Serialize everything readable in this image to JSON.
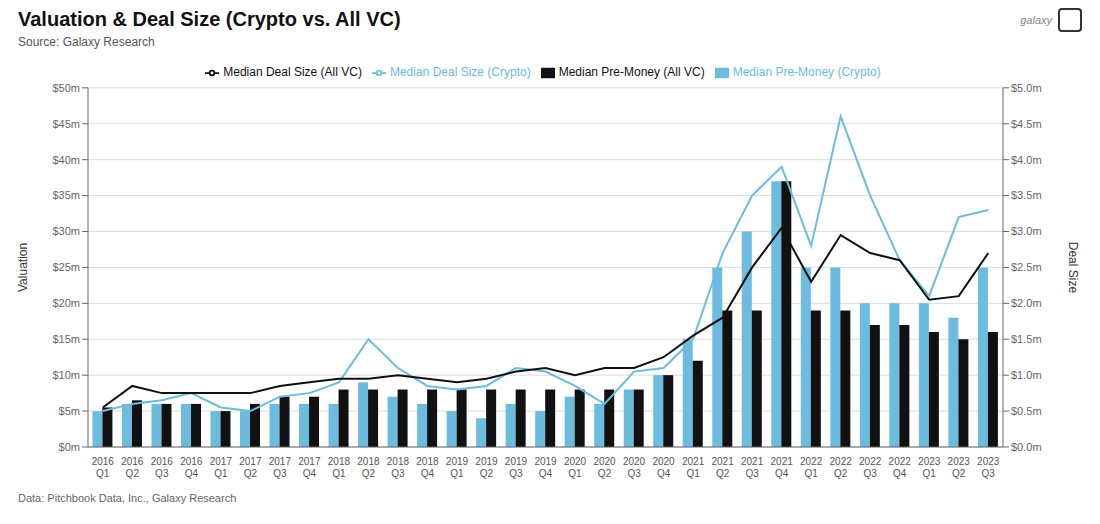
{
  "chart_data": {
    "type": "bar",
    "title": "Valuation & Deal Size (Crypto vs. All VC)",
    "subtitle": "Source: Galaxy Research",
    "footnote": "Data: Pitchbook Data, Inc., Galaxy Research",
    "annotations": [
      "galaxy"
    ],
    "ylabel": "Valuation",
    "y2label": "Deal Size",
    "categories": [
      "2016\nQ1",
      "2016\nQ2",
      "2016\nQ3",
      "2016\nQ4",
      "2017\nQ1",
      "2017\nQ2",
      "2017\nQ3",
      "2017\nQ4",
      "2018\nQ1",
      "2018\nQ2",
      "2018\nQ3",
      "2018\nQ4",
      "2019\nQ1",
      "2019\nQ2",
      "2019\nQ3",
      "2019\nQ4",
      "2020\nQ1",
      "2020\nQ2",
      "2020\nQ3",
      "2020\nQ4",
      "2021\nQ1",
      "2021\nQ2",
      "2021\nQ3",
      "2021\nQ4",
      "2022\nQ1",
      "2022\nQ2",
      "2022\nQ3",
      "2022\nQ4",
      "2023\nQ1",
      "2023\nQ2",
      "2023\nQ3"
    ],
    "series": [
      {
        "name": "Median Pre-Money (Crypto)",
        "type": "bar",
        "color": "#6bbcde",
        "values": [
          5,
          6,
          6,
          6,
          5,
          5,
          6,
          6,
          6,
          9,
          7,
          6,
          5,
          4,
          6,
          5,
          7,
          6,
          8,
          10,
          15,
          25,
          30,
          37,
          25,
          25,
          20,
          20,
          20,
          18,
          25
        ]
      },
      {
        "name": "Median Pre-Money (All VC)",
        "type": "bar",
        "color": "#111111",
        "values": [
          5.5,
          6.5,
          6,
          6,
          5,
          6,
          7,
          7,
          8,
          8,
          8,
          8,
          8,
          8,
          8,
          8,
          8,
          8,
          8,
          10,
          12,
          19,
          19,
          37,
          19,
          19,
          17,
          17,
          16,
          15,
          16
        ]
      },
      {
        "name": "Median Deal Size (Crypto)",
        "type": "line",
        "axis": "y2",
        "color": "#6bbcde",
        "values": [
          0.5,
          0.6,
          0.65,
          0.75,
          0.55,
          0.5,
          0.7,
          0.75,
          0.9,
          1.5,
          1.1,
          0.85,
          0.8,
          0.85,
          1.1,
          1.05,
          0.85,
          0.6,
          1.05,
          1.1,
          1.5,
          2.7,
          3.5,
          3.9,
          2.8,
          4.6,
          3.5,
          2.6,
          2.1,
          3.2,
          3.3
        ]
      },
      {
        "name": "Median Deal Size (All VC)",
        "type": "line",
        "axis": "y2",
        "color": "#111111",
        "values": [
          0.55,
          0.85,
          0.75,
          0.75,
          0.75,
          0.75,
          0.85,
          0.9,
          0.95,
          0.95,
          1.0,
          0.95,
          0.9,
          0.95,
          1.05,
          1.1,
          1.0,
          1.1,
          1.1,
          1.25,
          1.55,
          1.8,
          2.5,
          3.05,
          2.3,
          2.95,
          2.7,
          2.6,
          2.05,
          2.1,
          2.7
        ]
      }
    ],
    "ylim": [
      0,
      50
    ],
    "yticks": [
      {
        "value": 0,
        "label": "$0m"
      },
      {
        "value": 5,
        "label": "$5m"
      },
      {
        "value": 10,
        "label": "$10m"
      },
      {
        "value": 15,
        "label": "$15m"
      },
      {
        "value": 20,
        "label": "$20m"
      },
      {
        "value": 25,
        "label": "$25m"
      },
      {
        "value": 30,
        "label": "$30m"
      },
      {
        "value": 35,
        "label": "$35m"
      },
      {
        "value": 40,
        "label": "$40m"
      },
      {
        "value": 45,
        "label": "$45m"
      },
      {
        "value": 50,
        "label": "$50m"
      }
    ],
    "y2lim": [
      0,
      5.0
    ],
    "y2ticks": [
      {
        "value": 0,
        "label": "$0.0m"
      },
      {
        "value": 0.5,
        "label": "$0.5m"
      },
      {
        "value": 1.0,
        "label": "$1.0m"
      },
      {
        "value": 1.5,
        "label": "$1.5m"
      },
      {
        "value": 2.0,
        "label": "$2.0m"
      },
      {
        "value": 2.5,
        "label": "$2.5m"
      },
      {
        "value": 3.0,
        "label": "$3.0m"
      },
      {
        "value": 3.5,
        "label": "$3.5m"
      },
      {
        "value": 4.0,
        "label": "$4.0m"
      },
      {
        "value": 4.5,
        "label": "$4.5m"
      },
      {
        "value": 5.0,
        "label": "$5.0m"
      }
    ],
    "grid": true,
    "legend": "top"
  }
}
